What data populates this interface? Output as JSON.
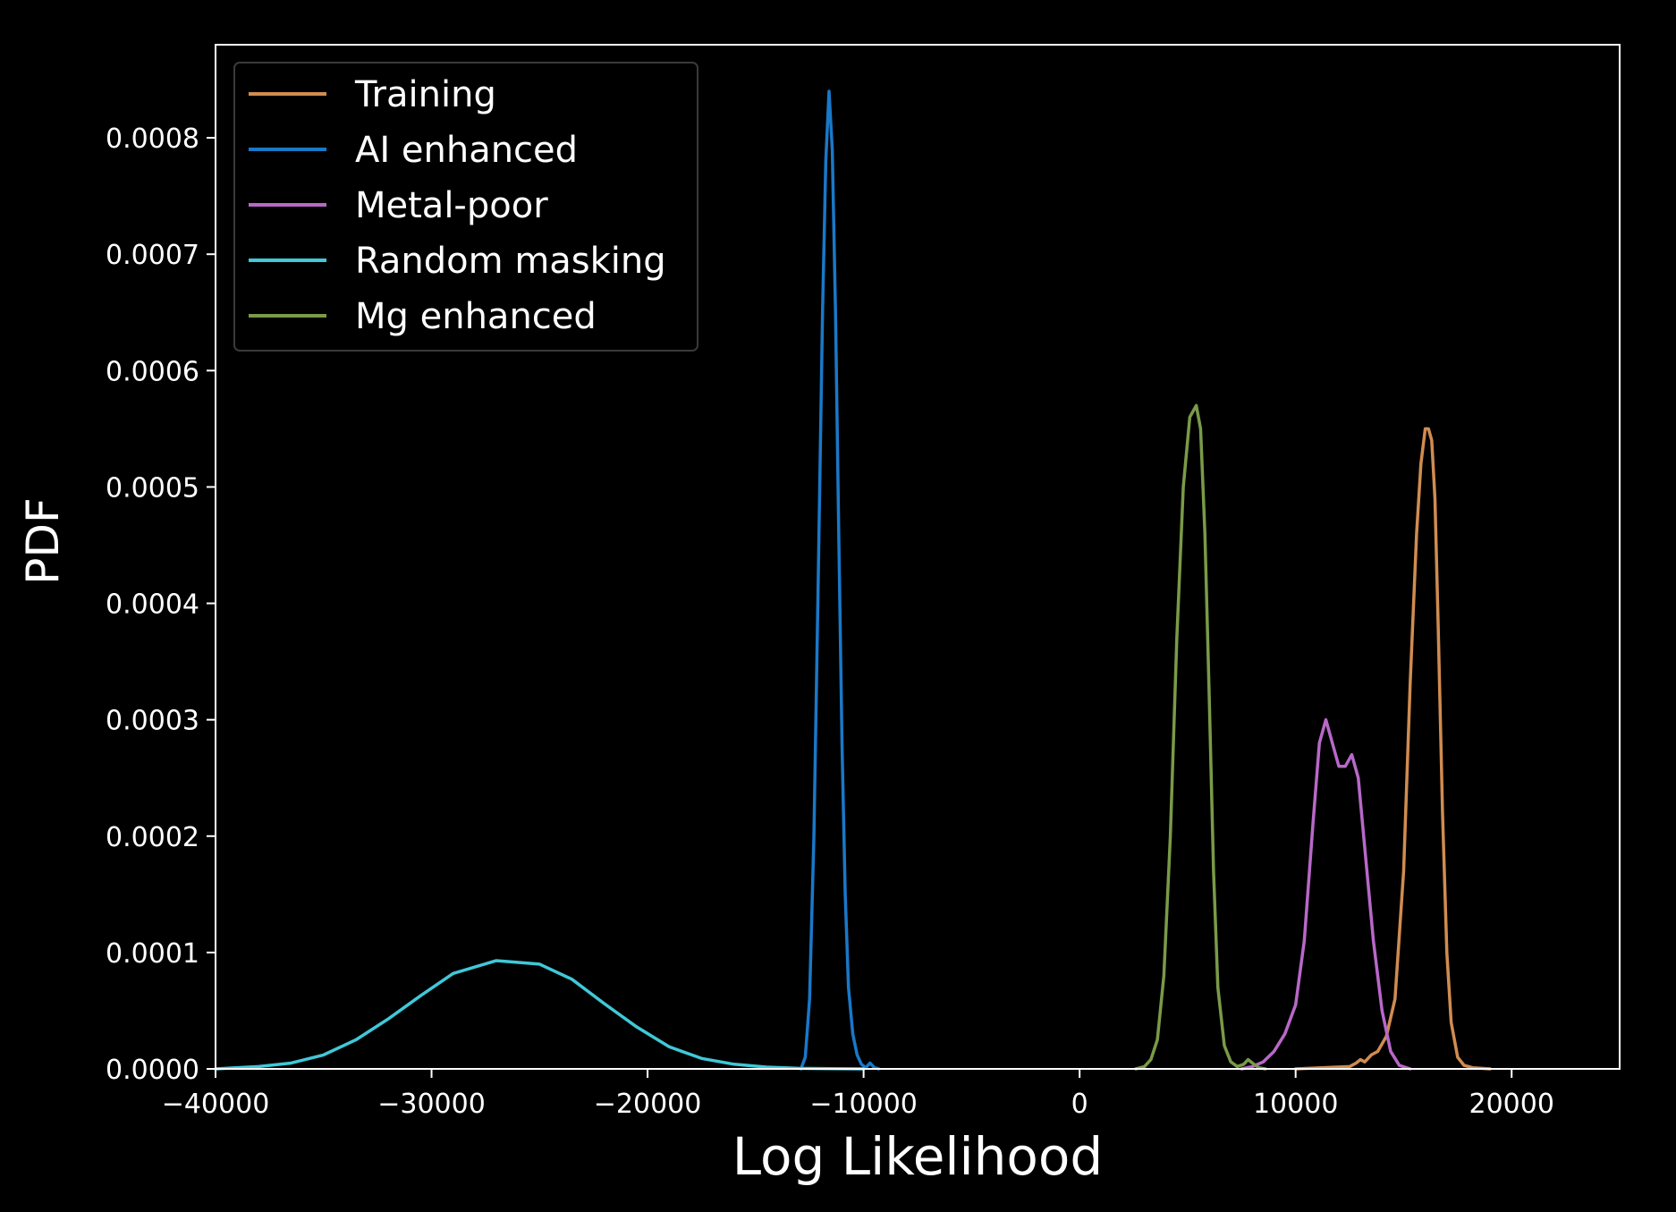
{
  "chart_data": {
    "type": "line",
    "title": "",
    "xlabel": "Log Likelihood",
    "ylabel": "PDF",
    "xlim": [
      -40000,
      25000
    ],
    "ylim": [
      0,
      0.00088
    ],
    "xticks": [
      -40000,
      -30000,
      -20000,
      -10000,
      0,
      10000,
      20000
    ],
    "xtick_labels": [
      "−40000",
      "−30000",
      "−20000",
      "−10000",
      "0",
      "10000",
      "20000"
    ],
    "yticks": [
      0,
      0.0001,
      0.0002,
      0.0003,
      0.0004,
      0.0005,
      0.0006,
      0.0007,
      0.0008
    ],
    "ytick_labels": [
      "0.0000",
      "0.0001",
      "0.0002",
      "0.0003",
      "0.0004",
      "0.0005",
      "0.0006",
      "0.0007",
      "0.0008"
    ],
    "grid": false,
    "legend_position": "top-left",
    "background": "#000000",
    "foreground": "#ffffff",
    "series": [
      {
        "name": "Training",
        "color": "#d08c50",
        "x": [
          10000,
          12500,
          12800,
          13000,
          13200,
          13500,
          13800,
          14200,
          14600,
          15000,
          15300,
          15600,
          15800,
          16000,
          16150,
          16300,
          16450,
          16600,
          16800,
          17000,
          17200,
          17500,
          17800,
          18200,
          19000
        ],
        "y": [
          0,
          2e-06,
          5e-06,
          8e-06,
          6e-06,
          1.2e-05,
          1.5e-05,
          2.8e-05,
          6e-05,
          0.00017,
          0.00033,
          0.00046,
          0.00052,
          0.00055,
          0.00055,
          0.00054,
          0.00049,
          0.00038,
          0.00022,
          0.0001,
          4e-05,
          1e-05,
          3e-06,
          1e-06,
          0
        ]
      },
      {
        "name": "AI enhanced",
        "color": "#1a78c8",
        "x": [
          -12900,
          -12700,
          -12500,
          -12300,
          -12100,
          -11900,
          -11750,
          -11600,
          -11450,
          -11300,
          -11150,
          -11000,
          -10850,
          -10700,
          -10500,
          -10300,
          -10100,
          -9900,
          -9700,
          -9500,
          -9300
        ],
        "y": [
          0,
          1e-05,
          6e-05,
          0.0002,
          0.00042,
          0.00065,
          0.00078,
          0.00084,
          0.00079,
          0.00065,
          0.00046,
          0.00028,
          0.00015,
          7e-05,
          3e-05,
          1.2e-05,
          4e-06,
          1e-06,
          5e-06,
          1e-06,
          0
        ]
      },
      {
        "name": "Metal-poor",
        "color": "#b868c8",
        "x": [
          7500,
          8000,
          8500,
          9000,
          9500,
          10000,
          10400,
          10800,
          11100,
          11400,
          11700,
          12000,
          12300,
          12600,
          12900,
          13200,
          13600,
          14000,
          14400,
          14800,
          15300
        ],
        "y": [
          0,
          2e-06,
          6e-06,
          1.5e-05,
          3e-05,
          5.5e-05,
          0.00011,
          0.00021,
          0.00028,
          0.0003,
          0.00028,
          0.00026,
          0.00026,
          0.00027,
          0.00025,
          0.00019,
          0.00011,
          5e-05,
          1.5e-05,
          3e-06,
          0
        ]
      },
      {
        "name": "Random masking",
        "color": "#40c8d8",
        "x": [
          -40000,
          -38000,
          -36500,
          -35000,
          -33500,
          -32000,
          -30500,
          -29000,
          -27000,
          -25000,
          -23500,
          -22000,
          -20500,
          -19000,
          -17500,
          -16000,
          -14500,
          -13000,
          -11500,
          -10000
        ],
        "y": [
          0,
          2e-06,
          5e-06,
          1.2e-05,
          2.5e-05,
          4.3e-05,
          6.3e-05,
          8.2e-05,
          9.3e-05,
          9e-05,
          7.7e-05,
          5.6e-05,
          3.6e-05,
          1.9e-05,
          9e-06,
          4e-06,
          1.5e-06,
          5e-07,
          2e-07,
          0
        ]
      },
      {
        "name": "Mg enhanced",
        "color": "#7a9a48",
        "x": [
          2600,
          3000,
          3300,
          3600,
          3900,
          4200,
          4500,
          4800,
          5100,
          5400,
          5600,
          5800,
          6000,
          6200,
          6400,
          6700,
          7000,
          7300,
          7600,
          7800,
          8000,
          8300,
          8600
        ],
        "y": [
          0,
          2e-06,
          8e-06,
          2.5e-05,
          8e-05,
          0.0002,
          0.00037,
          0.0005,
          0.00056,
          0.00057,
          0.00055,
          0.00046,
          0.00032,
          0.00017,
          7e-05,
          2e-05,
          6e-06,
          2e-06,
          4e-06,
          8e-06,
          5e-06,
          1e-06,
          0
        ]
      }
    ]
  }
}
